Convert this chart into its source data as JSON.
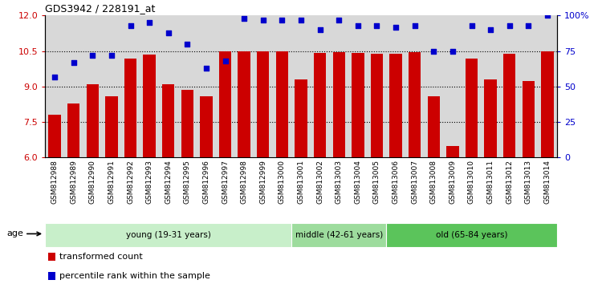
{
  "title": "GDS3942 / 228191_at",
  "samples": [
    "GSM812988",
    "GSM812989",
    "GSM812990",
    "GSM812991",
    "GSM812992",
    "GSM812993",
    "GSM812994",
    "GSM812995",
    "GSM812996",
    "GSM812997",
    "GSM812998",
    "GSM812999",
    "GSM813000",
    "GSM813001",
    "GSM813002",
    "GSM813003",
    "GSM813004",
    "GSM813005",
    "GSM813006",
    "GSM813007",
    "GSM813008",
    "GSM813009",
    "GSM813010",
    "GSM813011",
    "GSM813012",
    "GSM813013",
    "GSM813014"
  ],
  "bar_values": [
    7.8,
    8.3,
    9.1,
    8.6,
    10.2,
    10.35,
    9.1,
    8.85,
    8.6,
    10.5,
    10.48,
    10.5,
    10.48,
    9.3,
    10.43,
    10.45,
    10.43,
    10.38,
    10.38,
    10.45,
    8.6,
    6.5,
    10.2,
    9.3,
    10.38,
    9.25,
    10.5
  ],
  "percentile_values": [
    57,
    67,
    72,
    72,
    93,
    95,
    88,
    80,
    63,
    68,
    98,
    97,
    97,
    97,
    90,
    97,
    93,
    93,
    92,
    93,
    75,
    75,
    93,
    90,
    93,
    93,
    100
  ],
  "bar_color": "#cc0000",
  "percentile_color": "#0000cc",
  "ylim_left": [
    6,
    12
  ],
  "ylim_right": [
    0,
    100
  ],
  "yticks_left": [
    6,
    7.5,
    9,
    10.5,
    12
  ],
  "yticks_right": [
    0,
    25,
    50,
    75,
    100
  ],
  "ytick_labels_right": [
    "0",
    "25",
    "50",
    "75",
    "100%"
  ],
  "hlines": [
    7.5,
    9.0,
    10.5
  ],
  "groups": [
    {
      "label": "young (19-31 years)",
      "start": 0,
      "end": 13,
      "color": "#c8efca"
    },
    {
      "label": "middle (42-61 years)",
      "start": 13,
      "end": 18,
      "color": "#9ddc9d"
    },
    {
      "label": "old (65-84 years)",
      "start": 18,
      "end": 27,
      "color": "#5bc45b"
    }
  ],
  "legend_items": [
    {
      "label": "transformed count",
      "color": "#cc0000"
    },
    {
      "label": "percentile rank within the sample",
      "color": "#0000cc"
    }
  ],
  "age_label": "age",
  "background_color": "#ffffff",
  "plot_bg_color": "#d8d8d8",
  "xtick_bg_color": "#c8c8c8"
}
